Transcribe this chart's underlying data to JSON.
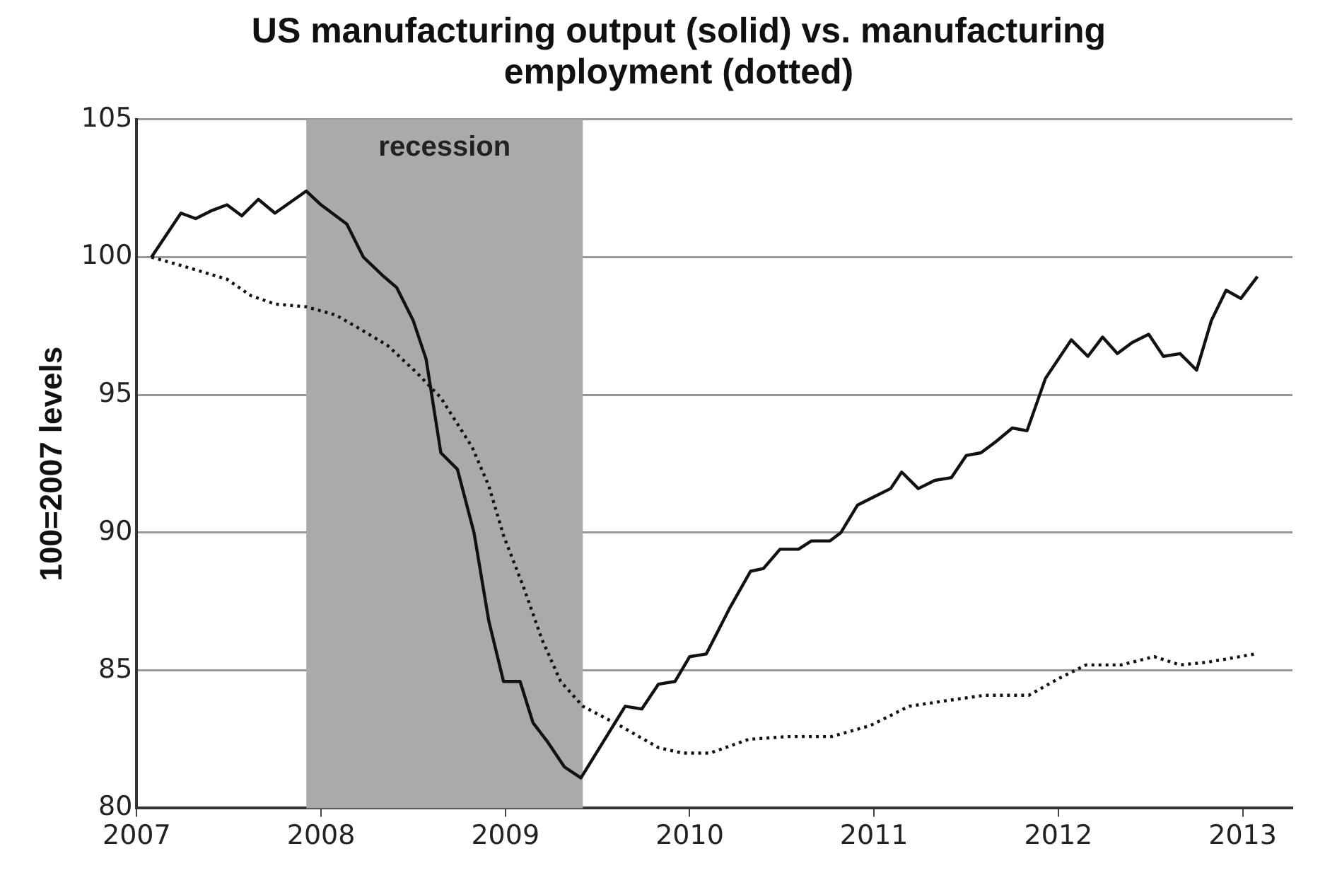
{
  "chart_data": {
    "type": "line",
    "title": "US manufacturing output (solid) vs. manufacturing employment (dotted)",
    "ylabel": "100=2007 levels",
    "xlim": [
      2007,
      2013.27
    ],
    "xticks": [
      2007,
      2008,
      2009,
      2010,
      2011,
      2012,
      2013
    ],
    "ylim": [
      80,
      105
    ],
    "yticks": [
      80,
      85,
      90,
      95,
      100,
      105
    ],
    "grid": "y",
    "legend": false,
    "marker": "none",
    "bands": [
      {
        "axis": "x",
        "from": 2007.92,
        "to": 2009.42,
        "label": "recession",
        "color": "#aaaaaa"
      }
    ],
    "series": [
      {
        "color": "#111111",
        "line_style": "solid",
        "x": [
          2007.08,
          2007.24,
          2007.32,
          2007.41,
          2007.49,
          2007.57,
          2007.66,
          2007.75,
          2007.92,
          2008.0,
          2008.14,
          2008.23,
          2008.34,
          2008.41,
          2008.5,
          2008.57,
          2008.65,
          2008.74,
          2008.83,
          2008.91,
          2008.99,
          2009.08,
          2009.15,
          2009.23,
          2009.32,
          2009.41,
          2009.65,
          2009.74,
          2009.83,
          2009.92,
          2010.0,
          2010.09,
          2010.22,
          2010.33,
          2010.4,
          2010.49,
          2010.59,
          2010.66,
          2010.76,
          2010.82,
          2010.91,
          2011.0,
          2011.09,
          2011.15,
          2011.24,
          2011.33,
          2011.42,
          2011.5,
          2011.58,
          2011.66,
          2011.75,
          2011.83,
          2011.93,
          2012.07,
          2012.16,
          2012.24,
          2012.32,
          2012.4,
          2012.49,
          2012.57,
          2012.66,
          2012.75,
          2012.83,
          2012.91,
          2012.99,
          2013.08
        ],
        "values": [
          100,
          101.6,
          101.4,
          101.7,
          101.9,
          101.5,
          102.1,
          101.6,
          102.4,
          101.9,
          101.2,
          100,
          99.3,
          98.9,
          97.7,
          96.3,
          92.9,
          92.3,
          90,
          86.8,
          84.6,
          84.6,
          83.1,
          82.4,
          81.5,
          81.1,
          83.7,
          83.6,
          84.5,
          84.6,
          85.5,
          85.6,
          87.3,
          88.6,
          88.7,
          89.4,
          89.4,
          89.7,
          89.7,
          90,
          91,
          91.3,
          91.6,
          92.2,
          91.6,
          91.9,
          92,
          92.8,
          92.9,
          93.3,
          93.8,
          93.7,
          95.6,
          97,
          96.4,
          97.1,
          96.5,
          96.9,
          97.2,
          96.4,
          96.5,
          95.9,
          97.7,
          98.8,
          98.5,
          99.3
        ]
      },
      {
        "color": "#111111",
        "line_style": "dotted",
        "x": [
          2007.08,
          2007.24,
          2007.49,
          2007.62,
          2007.75,
          2007.92,
          2008.08,
          2008.21,
          2008.36,
          2008.52,
          2008.65,
          2008.82,
          2008.91,
          2008.99,
          2009.1,
          2009.2,
          2009.3,
          2009.42,
          2009.62,
          2009.83,
          2009.96,
          2010.11,
          2010.32,
          2010.53,
          2010.77,
          2010.98,
          2011.19,
          2011.39,
          2011.6,
          2011.84,
          2012.0,
          2012.15,
          2012.34,
          2012.52,
          2012.66,
          2012.81,
          2013.07
        ],
        "values": [
          100,
          99.7,
          99.2,
          98.6,
          98.3,
          98.2,
          97.9,
          97.4,
          96.8,
          95.8,
          94.9,
          93.1,
          91.7,
          89.9,
          88,
          86.1,
          84.6,
          83.7,
          83,
          82.2,
          82,
          82,
          82.5,
          82.6,
          82.6,
          83,
          83.7,
          83.9,
          84.1,
          84.1,
          84.7,
          85.2,
          85.2,
          85.5,
          85.2,
          85.3,
          85.6
        ]
      }
    ]
  }
}
